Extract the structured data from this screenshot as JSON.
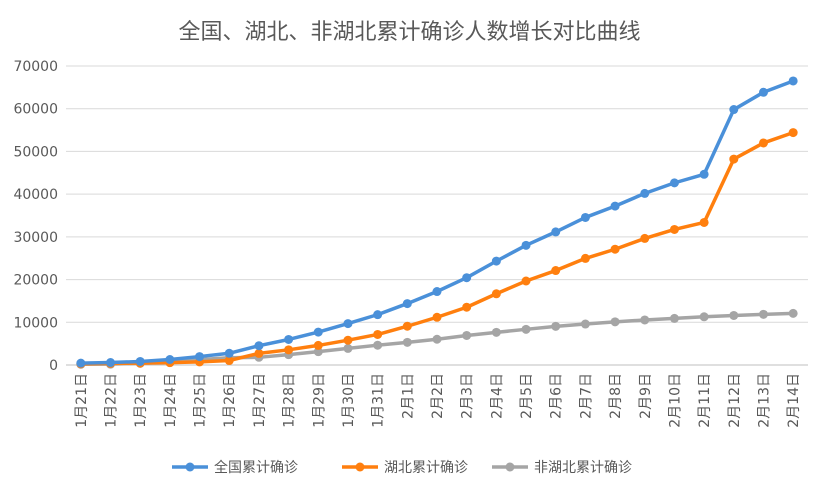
{
  "chart_data": {
    "type": "line",
    "title": "全国、湖北、非湖北累计确诊人数增长对比曲线",
    "xlabel": "",
    "ylabel": "",
    "ylim": [
      0,
      70000
    ],
    "yticks": [
      0,
      10000,
      20000,
      30000,
      40000,
      50000,
      60000,
      70000
    ],
    "grid": true,
    "legend_position": "bottom",
    "categories": [
      "1月21日",
      "1月22日",
      "1月23日",
      "1月24日",
      "1月25日",
      "1月26日",
      "1月27日",
      "1月28日",
      "1月29日",
      "1月30日",
      "1月31日",
      "2月1日",
      "2月2日",
      "2月3日",
      "2月4日",
      "2月5日",
      "2月6日",
      "2月7日",
      "2月8日",
      "2月9日",
      "2月10日",
      "2月11日",
      "2月12日",
      "2月13日",
      "2月14日"
    ],
    "series": [
      {
        "name": "全国累计确诊",
        "color": "#4a90d9",
        "values": [
          440,
          571,
          830,
          1287,
          1975,
          2744,
          4515,
          5974,
          7711,
          9692,
          11791,
          14380,
          17205,
          20438,
          24324,
          28018,
          31161,
          34546,
          37198,
          40171,
          42638,
          44653,
          59804,
          63851,
          66492
        ]
      },
      {
        "name": "湖北累计确诊",
        "color": "#ff7f0e",
        "values": [
          270,
          375,
          444,
          549,
          729,
          1052,
          2714,
          3554,
          4586,
          5806,
          7153,
          9074,
          11177,
          13522,
          16678,
          19665,
          22112,
          24953,
          27100,
          29631,
          31728,
          33366,
          48206,
          51986,
          54406
        ]
      },
      {
        "name": "非湖北累计确诊",
        "color": "#a5a5a5",
        "values": [
          170,
          196,
          386,
          738,
          1246,
          1692,
          1801,
          2420,
          3125,
          3886,
          4638,
          5306,
          6028,
          6916,
          7646,
          8353,
          9049,
          9593,
          10098,
          10540,
          10910,
          11287,
          11598,
          11865,
          12086
        ]
      }
    ]
  }
}
